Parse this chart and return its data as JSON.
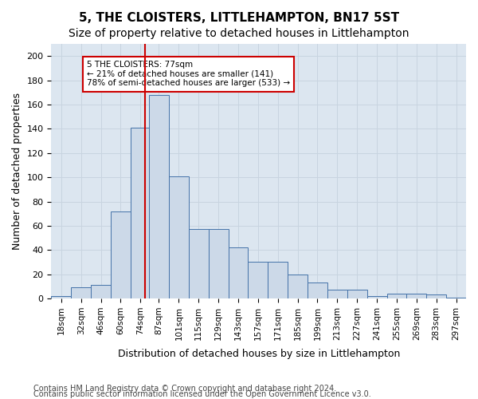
{
  "title": "5, THE CLOISTERS, LITTLEHAMPTON, BN17 5ST",
  "subtitle": "Size of property relative to detached houses in Littlehampton",
  "xlabel": "Distribution of detached houses by size in Littlehampton",
  "ylabel": "Number of detached properties",
  "footer_line1": "Contains HM Land Registry data © Crown copyright and database right 2024.",
  "footer_line2": "Contains public sector information licensed under the Open Government Licence v3.0.",
  "bin_labels": [
    "18sqm",
    "32sqm",
    "46sqm",
    "60sqm",
    "74sqm",
    "87sqm",
    "101sqm",
    "115sqm",
    "129sqm",
    "143sqm",
    "157sqm",
    "171sqm",
    "185sqm",
    "199sqm",
    "213sqm",
    "227sqm",
    "241sqm",
    "255sqm",
    "269sqm",
    "283sqm",
    "297sqm"
  ],
  "bar_heights": [
    2,
    9,
    11,
    72,
    141,
    168,
    101,
    57,
    57,
    42,
    30,
    30,
    20,
    13,
    7,
    7,
    2,
    4,
    4,
    3,
    1
  ],
  "bin_edges": [
    11,
    25,
    39,
    53,
    67,
    80,
    94,
    108,
    122,
    136,
    150,
    164,
    178,
    192,
    206,
    220,
    234,
    248,
    262,
    276,
    290,
    304
  ],
  "property_value": 77,
  "bar_face_color": "#ccd9e8",
  "bar_edge_color": "#4472a8",
  "vline_color": "#cc0000",
  "annotation_box_edge_color": "#cc0000",
  "annotation_text": "5 THE CLOISTERS: 77sqm\n← 21% of detached houses are smaller (141)\n78% of semi-detached houses are larger (533) →",
  "ylim": [
    0,
    210
  ],
  "yticks": [
    0,
    20,
    40,
    60,
    80,
    100,
    120,
    140,
    160,
    180,
    200
  ],
  "grid_color": "#c8d4e0",
  "background_color": "#dce6f0",
  "title_fontsize": 11,
  "subtitle_fontsize": 10,
  "label_fontsize": 9,
  "tick_fontsize": 8,
  "footer_fontsize": 7
}
